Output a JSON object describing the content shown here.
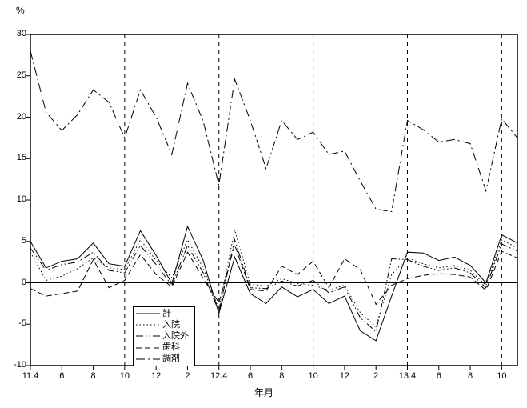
{
  "labels": {
    "y_unit": "%",
    "x_title": "年月"
  },
  "chart_data": {
    "type": "line",
    "title": "",
    "ylabel": "%",
    "xlabel": "年月",
    "ylim": [
      -10,
      30
    ],
    "ytick_interval": 5,
    "ytick_values": [
      30,
      25,
      20,
      15,
      10,
      5,
      0,
      -5,
      -10
    ],
    "ytick_labels": [
      "30",
      "25",
      "20",
      "15",
      "10",
      "5",
      "0",
      "-5",
      "-10"
    ],
    "x_months_count": 32,
    "x_month_meaning": "monthly from 11.4 (Heisei 11 April) to 13.11, tick every 2 months",
    "xtick_month_indices": [
      0,
      2,
      4,
      6,
      8,
      10,
      12,
      14,
      16,
      18,
      20,
      22,
      24,
      26,
      28,
      30
    ],
    "xtick_labels": [
      "11.4",
      "6",
      "8",
      "10",
      "12",
      "2",
      "12.4",
      "6",
      "8",
      "10",
      "12",
      "2",
      "13.4",
      "6",
      "8",
      "10"
    ],
    "vertical_gridline_month_indices": [
      6,
      12,
      18,
      24,
      30
    ],
    "grid": "vertical dashed lines only, solid zero line",
    "legend_position": "inside bottom-left",
    "line_color": "#000000",
    "background_color": "#ffffff",
    "series": [
      {
        "name": "計",
        "dash": "solid",
        "values": [
          5.0,
          1.8,
          2.6,
          2.9,
          4.8,
          2.3,
          2.0,
          6.3,
          3.3,
          -0.1,
          6.8,
          2.7,
          -3.7,
          3.1,
          -1.3,
          -2.5,
          -0.5,
          -1.7,
          -0.8,
          -2.5,
          -1.6,
          -5.8,
          -7.0,
          -1.6,
          3.7,
          3.6,
          2.7,
          3.1,
          2.1,
          0.0,
          5.8,
          4.8
        ]
      },
      {
        "name": "入院",
        "dash": "dotted",
        "values": [
          3.7,
          0.3,
          0.8,
          1.7,
          3.0,
          1.8,
          1.6,
          5.2,
          2.7,
          0.6,
          5.2,
          1.8,
          -3.2,
          6.4,
          -0.2,
          -0.4,
          0.5,
          -0.1,
          -0.3,
          -0.9,
          -0.3,
          -3.6,
          -5.3,
          1.0,
          3.0,
          2.3,
          1.8,
          2.1,
          1.5,
          -0.3,
          5.2,
          4.2
        ]
      },
      {
        "name": "入院外",
        "dash": "dash-dot-dot",
        "values": [
          4.2,
          1.5,
          2.2,
          2.5,
          3.7,
          1.5,
          1.2,
          4.5,
          2.2,
          -0.3,
          4.5,
          1.2,
          -3.5,
          5.2,
          -0.6,
          -0.7,
          0.2,
          -0.4,
          0.3,
          -1.2,
          -0.5,
          -4.2,
          -5.9,
          2.9,
          2.8,
          2.0,
          1.5,
          1.8,
          1.2,
          -0.6,
          4.7,
          3.8
        ]
      },
      {
        "name": "歯科",
        "dash": "dashed",
        "values": [
          -0.7,
          -1.6,
          -1.3,
          -1.0,
          2.8,
          -0.6,
          0.3,
          3.4,
          1.0,
          -0.5,
          3.7,
          0.5,
          -2.4,
          4.6,
          -0.8,
          -1.0,
          2.0,
          1.0,
          2.6,
          -0.6,
          2.9,
          1.6,
          -2.6,
          -0.3,
          0.5,
          0.9,
          1.1,
          1.0,
          0.7,
          -0.9,
          3.8,
          3.0
        ]
      },
      {
        "name": "調剤",
        "dash": "dash-dot",
        "values": [
          28.0,
          20.6,
          18.4,
          20.3,
          23.3,
          21.8,
          17.5,
          23.3,
          20.0,
          15.5,
          24.1,
          19.5,
          11.8,
          24.6,
          19.6,
          13.8,
          19.6,
          17.3,
          18.2,
          15.5,
          15.9,
          12.3,
          8.9,
          8.6,
          19.6,
          18.5,
          17.0,
          17.3,
          16.8,
          11.1,
          19.8,
          17.5
        ]
      }
    ]
  }
}
